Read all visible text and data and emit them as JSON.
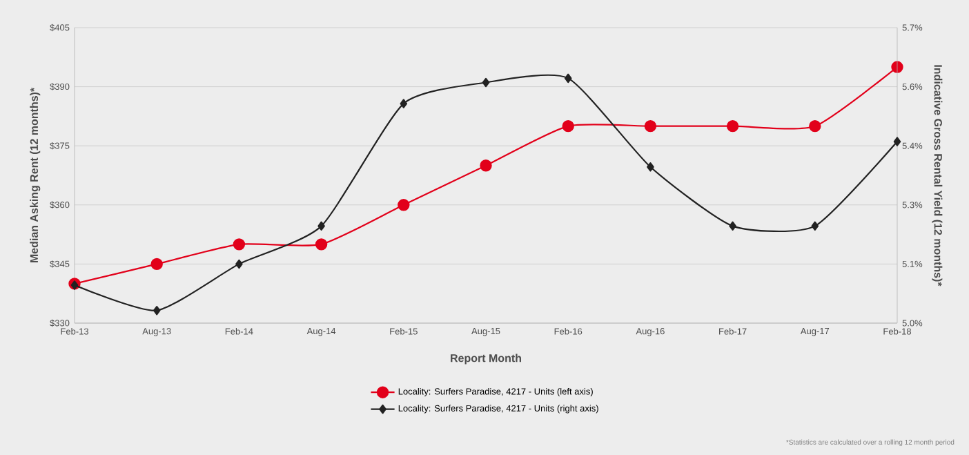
{
  "chart_data": {
    "type": "line",
    "xlabel": "Report Month",
    "ylabel": "Median Asking Rent (12 months)*",
    "y2label": "Indicative Gross Rental Yield (12 months)*",
    "categories": [
      "Feb-13",
      "Aug-13",
      "Feb-14",
      "Aug-14",
      "Feb-15",
      "Aug-15",
      "Feb-16",
      "Aug-16",
      "Feb-17",
      "Aug-17",
      "Feb-18"
    ],
    "series": [
      {
        "name": "Locality: Surfers Paradise, 4217 - Units (left axis)",
        "color": "#e2001a",
        "marker": "circle",
        "values": [
          340,
          345,
          350,
          350,
          360,
          370,
          380,
          380,
          380,
          380,
          395
        ]
      },
      {
        "name": "Locality: Surfers Paradise, 4217 - Units (right axis)",
        "color": "#222222",
        "marker": "diamond",
        "axis": "y2",
        "values": [
          5.09,
          5.03,
          5.14,
          5.23,
          5.52,
          5.57,
          5.58,
          5.37,
          5.23,
          5.23,
          5.43
        ]
      }
    ],
    "ylim": [
      330,
      405
    ],
    "yticks": [
      {
        "value": 330,
        "label": "$330"
      },
      {
        "value": 345,
        "label": "$345"
      },
      {
        "value": 360,
        "label": "$360"
      },
      {
        "value": 375,
        "label": "$375"
      },
      {
        "value": 390,
        "label": "$390"
      },
      {
        "value": 405,
        "label": "$405"
      }
    ],
    "y2lim": [
      5.0,
      5.7
    ],
    "y2ticks": [
      {
        "value": 5.0,
        "label": "5.0%"
      },
      {
        "value": 5.14,
        "label": "5.1%"
      },
      {
        "value": 5.28,
        "label": "5.3%"
      },
      {
        "value": 5.42,
        "label": "5.4%"
      },
      {
        "value": 5.56,
        "label": "5.6%"
      },
      {
        "value": 5.7,
        "label": "5.7%"
      }
    ],
    "grid": "y",
    "legend": "bottom",
    "line_style": "solid",
    "annotations": [
      "*Statistics are calculated over a rolling 12 month period"
    ]
  }
}
